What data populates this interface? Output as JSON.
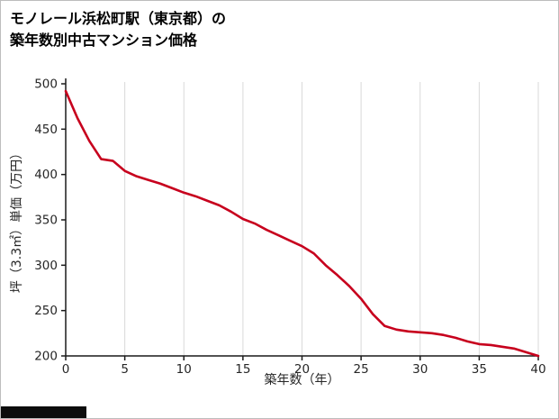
{
  "title": {
    "line1": "モノレール浜松町駅（東京都）の",
    "line2": "築年数別中古マンション価格"
  },
  "colors": {
    "line": "#c7001d",
    "grid": "#d9d9d9",
    "axis": "#1a1a1a",
    "tick_text": "#262626",
    "border": "#bdbdbd",
    "footer_bar": "#0d0d0d"
  },
  "chart_data": {
    "type": "line",
    "title": "モノレール浜松町駅（東京都）の築年数別中古マンション価格",
    "xlabel": "築年数（年）",
    "ylabel": "坪（3.3㎡）単価（万円）",
    "xlim": [
      0,
      40
    ],
    "ylim": [
      200,
      500
    ],
    "xticks": [
      0,
      5,
      10,
      15,
      20,
      25,
      30,
      35,
      40
    ],
    "yticks": [
      200,
      250,
      300,
      350,
      400,
      450,
      500
    ],
    "grid": "vertical-only",
    "legend": "none",
    "x": [
      0,
      1,
      2,
      3,
      4,
      5,
      6,
      7,
      8,
      9,
      10,
      11,
      12,
      13,
      14,
      15,
      16,
      17,
      18,
      19,
      20,
      21,
      22,
      23,
      24,
      25,
      26,
      27,
      28,
      29,
      30,
      31,
      32,
      33,
      34,
      35,
      36,
      37,
      38,
      39,
      40
    ],
    "series": [
      {
        "name": "坪単価（万円）",
        "values": [
          492,
          462,
          437,
          417,
          415,
          404,
          398,
          394,
          390,
          385,
          380,
          376,
          371,
          366,
          359,
          351,
          346,
          339,
          333,
          327,
          321,
          313,
          300,
          289,
          277,
          263,
          246,
          233,
          229,
          227,
          226,
          225,
          223,
          220,
          216,
          213,
          212,
          210,
          208,
          204,
          200
        ]
      }
    ]
  }
}
